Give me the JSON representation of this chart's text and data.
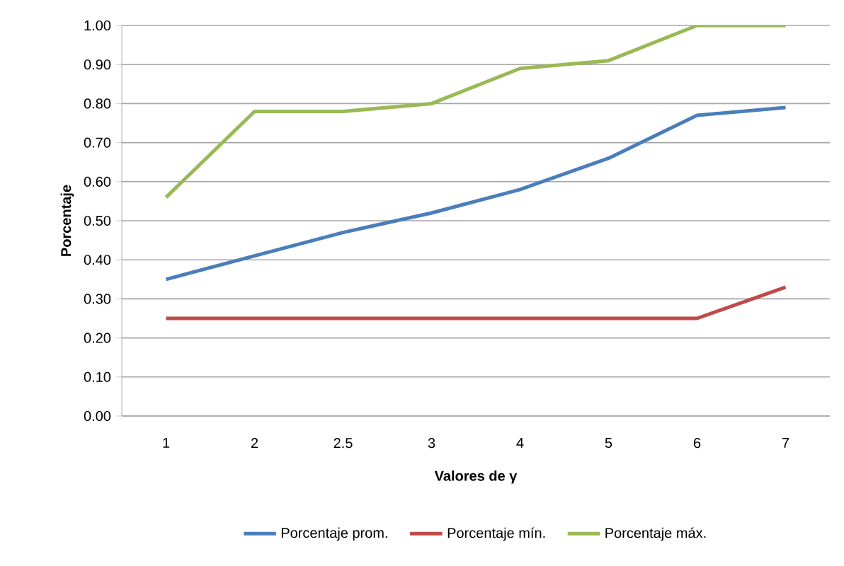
{
  "chart_data": {
    "type": "line",
    "xlabel": "Valores de γ",
    "ylabel": "Porcentaje",
    "categories": [
      "1",
      "2",
      "2.5",
      "3",
      "4",
      "5",
      "6",
      "7"
    ],
    "series": [
      {
        "name": "Porcentaje prom.",
        "color": "#4a7ebb",
        "values": [
          0.35,
          0.41,
          0.47,
          0.52,
          0.58,
          0.66,
          0.77,
          0.79
        ]
      },
      {
        "name": "Porcentaje mín.",
        "color": "#be4b48",
        "values": [
          0.25,
          0.25,
          0.25,
          0.25,
          0.25,
          0.25,
          0.25,
          0.33
        ]
      },
      {
        "name": "Porcentaje máx.",
        "color": "#98b954",
        "values": [
          0.56,
          0.78,
          0.78,
          0.8,
          0.89,
          0.91,
          1.0,
          1.0
        ]
      }
    ],
    "ylim": [
      0,
      1
    ],
    "yticks": [
      {
        "value": 0,
        "label": "0.00"
      },
      {
        "value": 0.1,
        "label": "0.10"
      },
      {
        "value": 0.2,
        "label": "0.20"
      },
      {
        "value": 0.3,
        "label": "0.30"
      },
      {
        "value": 0.4,
        "label": "0.40"
      },
      {
        "value": 0.5,
        "label": "0.50"
      },
      {
        "value": 0.6,
        "label": "0.60"
      },
      {
        "value": 0.7,
        "label": "0.70"
      },
      {
        "value": 0.8,
        "label": "0.80"
      },
      {
        "value": 0.9,
        "label": "0.90"
      },
      {
        "value": 1,
        "label": "1.00"
      }
    ],
    "grid": "y",
    "legend": "bottom",
    "marker": "none",
    "line_style": "solid"
  }
}
